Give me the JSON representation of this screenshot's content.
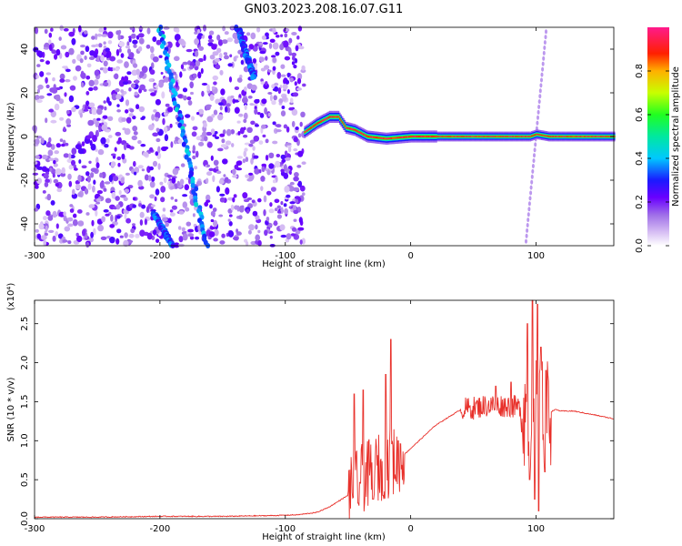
{
  "title": "GN03.2023.208.16.07.G11",
  "chart_data": [
    {
      "type": "heatmap",
      "xlabel": "Height of straight line (km)",
      "ylabel": "Frequency (Hz)",
      "xlim": [
        -300,
        162
      ],
      "ylim": [
        -50,
        50
      ],
      "xticks": [
        -300,
        -200,
        -100,
        0,
        100
      ],
      "yticks": [
        -40,
        -20,
        0,
        20,
        40
      ],
      "grid": false,
      "colorbar": {
        "label": "Normalized spectral amplitude",
        "range": [
          0,
          1
        ],
        "ticks": [
          0.0,
          0.2,
          0.4,
          0.6,
          0.8
        ],
        "tick_labels": [
          "0.0",
          "0.2",
          "0.4",
          "0.6",
          "0.8"
        ],
        "colormap": "rainbow",
        "colors": [
          "#ffffff",
          "#c8a8f0",
          "#8a2be2",
          "#3a00ff",
          "#00c8ff",
          "#00ff60",
          "#ffff00",
          "#ff8000",
          "#ff0000",
          "#ff1a8c"
        ]
      },
      "features": {
        "noise_region": {
          "x_range": [
            -300,
            -85
          ],
          "y_range": [
            -50,
            50
          ],
          "level": 0.15
        },
        "streaks": [
          {
            "x": [
              -200,
              -163
            ],
            "y": [
              50,
              -50
            ],
            "level": 0.35
          },
          {
            "x": [
              -138,
              -125
            ],
            "y": [
              50,
              27
            ],
            "level": 0.3
          },
          {
            "x": [
              -205,
              -190
            ],
            "y": [
              -35,
              -50
            ],
            "level": 0.3
          }
        ],
        "signal_path": {
          "x": [
            -85,
            -75,
            -65,
            -58,
            -52,
            -45,
            -35,
            -20,
            0,
            20,
            50,
            80,
            95,
            100,
            110,
            162
          ],
          "y": [
            2,
            6,
            9,
            9,
            4,
            3,
            0,
            -1,
            0,
            0,
            0,
            0,
            0,
            1,
            0,
            0
          ],
          "level": 0.85
        },
        "faint_line": {
          "x": [
            92,
            108
          ],
          "y": [
            -48,
            48
          ],
          "level": 0.1
        }
      }
    },
    {
      "type": "line",
      "xlabel": "Height of straight line (km)",
      "ylabel": "SNR (10 * v/v)",
      "y_multiplier": "(x10⁴)",
      "xlim": [
        -300,
        162
      ],
      "ylim": [
        0,
        2.8
      ],
      "xticks": [
        -300,
        -200,
        -100,
        0,
        100
      ],
      "yticks": [
        0.0,
        0.5,
        1.0,
        1.5,
        2.0,
        2.5
      ],
      "ytick_labels": [
        "0.0",
        "0.5",
        "1.0",
        "1.5",
        "2.0",
        "2.5"
      ],
      "grid": false,
      "color": "#e8302a",
      "series": [
        {
          "baseline_x": [
            -300,
            -250,
            -200,
            -150,
            -110,
            -90,
            -75,
            -65,
            -55,
            -50,
            -40,
            -30,
            -20,
            -10,
            0,
            10,
            20,
            30,
            40,
            50,
            60,
            70,
            80,
            90,
            95,
            100,
            105,
            110,
            115,
            120,
            130,
            140,
            150,
            162
          ],
          "baseline_y": [
            0.02,
            0.02,
            0.03,
            0.03,
            0.04,
            0.05,
            0.08,
            0.15,
            0.25,
            0.3,
            0.5,
            0.6,
            0.7,
            0.75,
            0.9,
            1.05,
            1.2,
            1.3,
            1.4,
            1.42,
            1.45,
            1.45,
            1.45,
            1.4,
            1.35,
            1.3,
            1.3,
            1.35,
            1.4,
            1.38,
            1.38,
            1.35,
            1.32,
            1.28
          ],
          "peaks": [
            {
              "x": -45,
              "y": 1.6
            },
            {
              "x": -38,
              "y": 1.65
            },
            {
              "x": -20,
              "y": 1.85
            },
            {
              "x": -16,
              "y": 2.3
            },
            {
              "x": -10,
              "y": 1.0
            },
            {
              "x": 68,
              "y": 1.7
            },
            {
              "x": 80,
              "y": 1.75
            },
            {
              "x": 93,
              "y": 2.5
            },
            {
              "x": 97,
              "y": 2.8
            },
            {
              "x": 101,
              "y": 2.75
            },
            {
              "x": 104,
              "y": 2.2
            },
            {
              "x": 108,
              "y": 1.9
            }
          ],
          "troughs": [
            {
              "x": -42,
              "y": 0.2
            },
            {
              "x": -30,
              "y": 0.25
            },
            {
              "x": -22,
              "y": 0.3
            },
            {
              "x": 95,
              "y": 0.5
            },
            {
              "x": 99,
              "y": 0.25
            },
            {
              "x": 102,
              "y": 0.1
            },
            {
              "x": 107,
              "y": 0.6
            }
          ],
          "oscillation_ranges": [
            {
              "x": [
                -50,
                -5
              ],
              "amplitude": 0.45
            },
            {
              "x": 40,
              "x_end": 90,
              "amplitude": 0.15
            },
            {
              "x": [
                88,
                112
              ],
              "amplitude": 0.75
            }
          ]
        }
      ]
    }
  ]
}
